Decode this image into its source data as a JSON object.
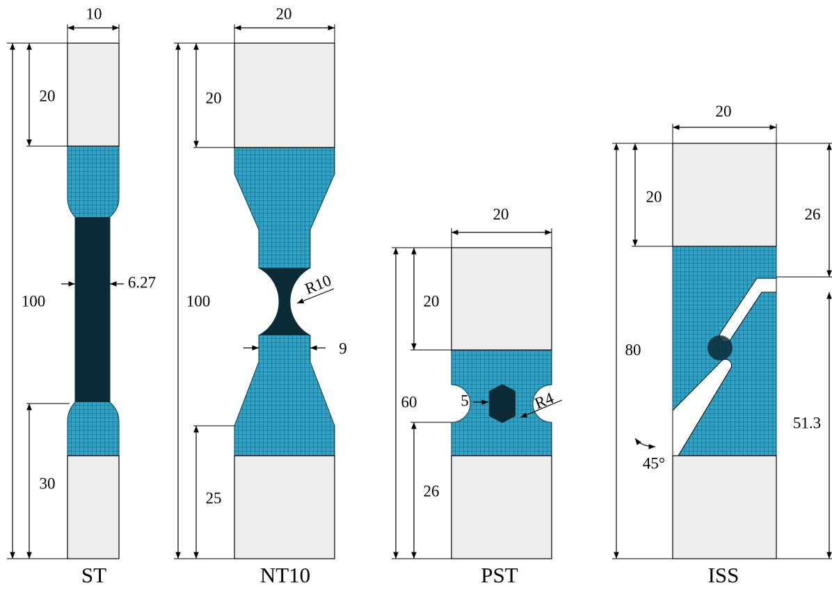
{
  "specimens": [
    {
      "name": "ST",
      "dimensions": [
        "10",
        "20",
        "100",
        "6.27",
        "30"
      ]
    },
    {
      "name": "NT10",
      "dimensions": [
        "20",
        "20",
        "100",
        "R10",
        "9",
        "25"
      ]
    },
    {
      "name": "PST",
      "dimensions": [
        "20",
        "20",
        "60",
        "5",
        "R4",
        "26"
      ]
    },
    {
      "name": "ISS",
      "dimensions": [
        "20",
        "20",
        "26",
        "80",
        "51.3",
        "45°"
      ]
    }
  ]
}
